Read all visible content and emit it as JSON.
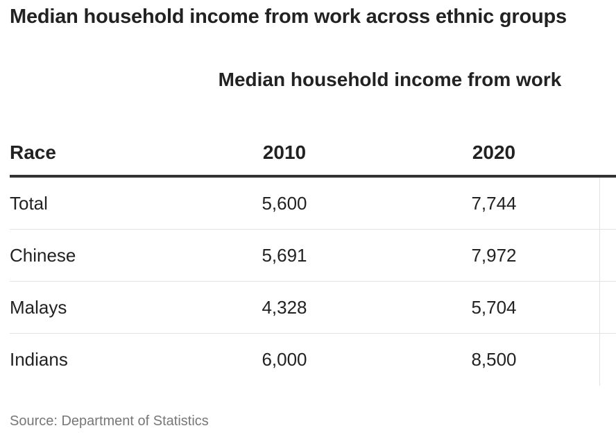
{
  "title": "Median household income from work across ethnic groups",
  "table": {
    "group_header": "Median household income from work",
    "columns": [
      "Race",
      "2010",
      "2020"
    ]
  },
  "chart_data": {
    "type": "table",
    "title": "Median household income from work across ethnic groups",
    "group_header": "Median household income from work",
    "columns": [
      "Race",
      "2010",
      "2020"
    ],
    "rows": [
      {
        "race": "Total",
        "v2010": "5,600",
        "v2020": "7,744"
      },
      {
        "race": "Chinese",
        "v2010": "5,691",
        "v2020": "7,972"
      },
      {
        "race": "Malays",
        "v2010": "4,328",
        "v2020": "5,704"
      },
      {
        "race": "Indians",
        "v2010": "6,000",
        "v2020": "8,500"
      }
    ],
    "values_2010": [
      5600,
      5691,
      4328,
      6000
    ],
    "values_2020": [
      7744,
      7972,
      5704,
      8500
    ]
  },
  "source": "Source: Department of Statistics"
}
